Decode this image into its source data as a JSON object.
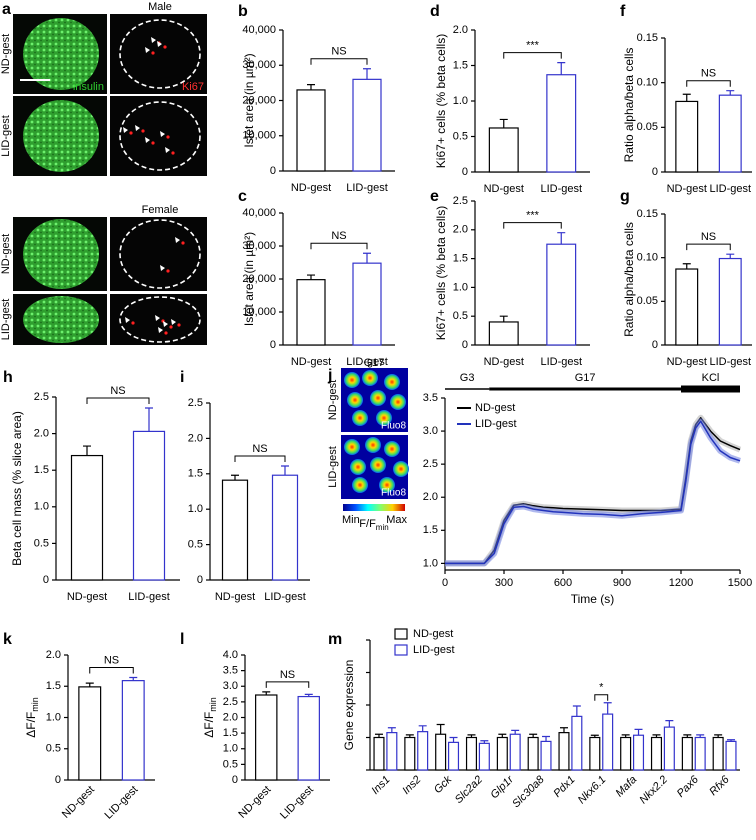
{
  "panel_a": {
    "panel": "a",
    "male": "Male",
    "female": "Female",
    "rows": [
      "ND-gest",
      "LID-gest",
      "ND-gest",
      "LID-gest"
    ],
    "stain_insulin": "insulin",
    "stain_ki67": "Ki67"
  },
  "panel_j_images": {
    "stimulus": "G17",
    "rows": [
      "ND-gest",
      "LID-gest"
    ],
    "dye": [
      "Fluo8",
      "Fluo8"
    ],
    "scale_min": "Min",
    "scale_max": "Max",
    "scale_label": "F/F",
    "scale_label_sub": "min"
  },
  "chart_data": [
    {
      "type": "bar",
      "panel": "b",
      "ylabel": "Islet area (in µm²)",
      "categories": [
        "ND-gest",
        "LID-gest"
      ],
      "values": [
        23000,
        26000
      ],
      "errors": [
        1500,
        3000
      ],
      "colors": [
        "#000000",
        "#3333cc"
      ],
      "ylim": [
        0,
        40000
      ],
      "yticks": [
        0,
        {
          "value": 10000,
          "label": "10,000"
        },
        {
          "value": 20000,
          "label": "20,000"
        },
        {
          "value": 30000,
          "label": "30,000"
        },
        {
          "value": 40000,
          "label": "40,000"
        }
      ],
      "annotation": "NS"
    },
    {
      "type": "bar",
      "panel": "c",
      "ylabel": "Islet area (in µm²)",
      "categories": [
        "ND-gest",
        "LID-gest"
      ],
      "values": [
        19800,
        24800
      ],
      "errors": [
        1400,
        3000
      ],
      "colors": [
        "#000000",
        "#3333cc"
      ],
      "ylim": [
        0,
        40000
      ],
      "yticks": [
        0,
        {
          "value": 10000,
          "label": "10,000"
        },
        {
          "value": 20000,
          "label": "20,000"
        },
        {
          "value": 30000,
          "label": "30,000"
        },
        {
          "value": 40000,
          "label": "40,000"
        }
      ],
      "annotation": "NS"
    },
    {
      "type": "bar",
      "panel": "d",
      "ylabel": "Ki67+ cells (% beta cells)",
      "categories": [
        "ND-gest",
        "LID-gest"
      ],
      "values": [
        0.62,
        1.37
      ],
      "errors": [
        0.12,
        0.17
      ],
      "colors": [
        "#000000",
        "#3333cc"
      ],
      "ylim": [
        0,
        2
      ],
      "yticks": [
        0,
        0.5,
        {
          "value": 1,
          "label": "1.0"
        },
        1.5,
        {
          "value": 2,
          "label": "2.0"
        }
      ],
      "annotation": "***"
    },
    {
      "type": "bar",
      "panel": "e",
      "ylabel": "Ki67+ cells (% beta cells)",
      "categories": [
        "ND-gest",
        "LID-gest"
      ],
      "values": [
        0.4,
        1.75
      ],
      "errors": [
        0.1,
        0.2
      ],
      "colors": [
        "#000000",
        "#3333cc"
      ],
      "ylim": [
        0,
        2.5
      ],
      "yticks": [
        0,
        0.5,
        {
          "value": 1,
          "label": "1.0"
        },
        1.5,
        {
          "value": 2,
          "label": "2.0"
        },
        2.5
      ],
      "annotation": "***"
    },
    {
      "type": "bar",
      "panel": "f",
      "ylabel": "Ratio alpha/beta cells",
      "categories": [
        "ND-gest",
        "LID-gest"
      ],
      "values": [
        0.079,
        0.086
      ],
      "errors": [
        0.008,
        0.005
      ],
      "colors": [
        "#000000",
        "#3333cc"
      ],
      "ylim": [
        0,
        0.15
      ],
      "yticks": [
        0,
        0.05,
        {
          "value": 0.1,
          "label": "0.10"
        },
        0.15
      ],
      "annotation": "NS"
    },
    {
      "type": "bar",
      "panel": "g",
      "ylabel": "Ratio alpha/beta cells",
      "categories": [
        "ND-gest",
        "LID-gest"
      ],
      "values": [
        0.087,
        0.099
      ],
      "errors": [
        0.006,
        0.005
      ],
      "colors": [
        "#000000",
        "#3333cc"
      ],
      "ylim": [
        0,
        0.15
      ],
      "yticks": [
        0,
        0.05,
        {
          "value": 0.1,
          "label": "0.10"
        },
        0.15
      ],
      "annotation": "NS"
    },
    {
      "type": "bar",
      "panel": "h",
      "ylabel": "Beta cell mass (% slice area)",
      "categories": [
        "ND-gest",
        "LID-gest"
      ],
      "values": [
        1.7,
        2.03
      ],
      "errors": [
        0.13,
        0.32
      ],
      "colors": [
        "#000000",
        "#3333cc"
      ],
      "ylim": [
        0,
        2.5
      ],
      "yticks": [
        0,
        0.5,
        {
          "value": 1,
          "label": "1.0"
        },
        1.5,
        {
          "value": 2,
          "label": "2.0"
        },
        2.5
      ],
      "annotation": "NS"
    },
    {
      "type": "bar",
      "panel": "i",
      "categories": [
        "ND-gest",
        "LID-gest"
      ],
      "values": [
        1.41,
        1.48
      ],
      "errors": [
        0.07,
        0.13
      ],
      "colors": [
        "#000000",
        "#3333cc"
      ],
      "ylim": [
        0,
        2.5
      ],
      "yticks": [
        0,
        0.5,
        {
          "value": 1,
          "label": "1.0"
        },
        1.5,
        {
          "value": 2,
          "label": "2.0"
        },
        2.5
      ],
      "annotation": "NS"
    },
    {
      "type": "line",
      "panel": "j",
      "xlabel": "Time (s)",
      "x": [
        0,
        50,
        100,
        150,
        200,
        250,
        300,
        350,
        400,
        450,
        500,
        550,
        600,
        700,
        800,
        900,
        1000,
        1100,
        1200,
        1225,
        1250,
        1275,
        1300,
        1350,
        1400,
        1450,
        1500
      ],
      "series": [
        {
          "name": "ND-gest",
          "color": "#000000",
          "values": [
            1.0,
            1.0,
            1.0,
            1.0,
            1.0,
            1.2,
            1.65,
            1.88,
            1.9,
            1.87,
            1.85,
            1.84,
            1.83,
            1.82,
            1.81,
            1.8,
            1.8,
            1.8,
            1.82,
            2.3,
            2.85,
            3.1,
            3.2,
            3.0,
            2.85,
            2.78,
            2.72
          ]
        },
        {
          "name": "LID-gest",
          "color": "#2233bb",
          "values": [
            1.0,
            1.0,
            1.0,
            1.0,
            1.0,
            1.15,
            1.6,
            1.85,
            1.86,
            1.82,
            1.8,
            1.78,
            1.77,
            1.75,
            1.74,
            1.72,
            1.75,
            1.77,
            1.8,
            2.25,
            2.8,
            3.05,
            3.15,
            2.9,
            2.7,
            2.6,
            2.55
          ]
        }
      ],
      "xlim": [
        0,
        1500
      ],
      "xticks": [
        0,
        300,
        600,
        900,
        1200,
        1500
      ],
      "ylim": [
        0.9,
        3.5
      ],
      "yticks": [
        {
          "value": 1,
          "label": "1.0"
        },
        1.5,
        {
          "value": 2,
          "label": "2.0"
        },
        2.5,
        {
          "value": 3,
          "label": "3.0"
        },
        3.5
      ],
      "legend": "top-left",
      "phases": [
        {
          "label": "G3",
          "start": 0,
          "end": 225
        },
        {
          "label": "G17",
          "start": 225,
          "end": 1200
        },
        {
          "label": "KCl",
          "start": 1200,
          "end": 1500
        }
      ]
    },
    {
      "type": "bar",
      "panel": "k",
      "ylabel": "ΔF/F",
      "ylabel_sub": "min",
      "categories": [
        "ND-gest",
        "LID-gest"
      ],
      "values": [
        1.49,
        1.59
      ],
      "errors": [
        0.06,
        0.05
      ],
      "colors": [
        "#000000",
        "#3333cc"
      ],
      "ylim": [
        0,
        2
      ],
      "yticks": [
        0,
        0.5,
        {
          "value": 1,
          "label": "1.0"
        },
        1.5,
        {
          "value": 2,
          "label": "2.0"
        }
      ],
      "annotation": "NS",
      "rotate_labels": true
    },
    {
      "type": "bar",
      "panel": "l",
      "ylabel": "ΔF/F",
      "ylabel_sub": "min",
      "categories": [
        "ND-gest",
        "LID-gest"
      ],
      "values": [
        2.72,
        2.67
      ],
      "errors": [
        0.1,
        0.07
      ],
      "colors": [
        "#000000",
        "#3333cc"
      ],
      "ylim": [
        0,
        4
      ],
      "yticks": [
        0,
        0.5,
        {
          "value": 1,
          "label": "1.0"
        },
        1.5,
        {
          "value": 2,
          "label": "2.0"
        },
        2.5,
        {
          "value": 3,
          "label": "3.0"
        },
        3.5,
        {
          "value": 4,
          "label": "4.0"
        }
      ],
      "annotation": "NS",
      "rotate_labels": true
    },
    {
      "type": "bar",
      "panel": "m",
      "ylabel": "Gene expression",
      "categories": [
        "Ins1",
        "Ins2",
        "Gck",
        "Slc2a2",
        "Glp1r",
        "Slc30a8",
        "Pdx1",
        "Nkx6.1",
        "Mafa",
        "Nkx2.2",
        "Pax6",
        "Rfx6"
      ],
      "series": [
        {
          "name": "ND-gest",
          "color": "#000000",
          "values": [
            1.0,
            1.0,
            1.1,
            1.0,
            1.0,
            1.0,
            1.15,
            1.0,
            1.0,
            1.0,
            1.0,
            1.0
          ],
          "errors": [
            0.1,
            0.08,
            0.3,
            0.08,
            0.1,
            0.1,
            0.15,
            0.07,
            0.08,
            0.08,
            0.08,
            0.08
          ]
        },
        {
          "name": "LID-gest",
          "color": "#3333cc",
          "values": [
            1.15,
            1.18,
            0.85,
            0.82,
            1.1,
            0.88,
            1.65,
            1.72,
            1.07,
            1.32,
            1.0,
            0.88
          ],
          "errors": [
            0.15,
            0.18,
            0.15,
            0.08,
            0.12,
            0.15,
            0.32,
            0.35,
            0.18,
            0.2,
            0.08,
            0.05
          ]
        }
      ],
      "ylim": [
        0,
        4
      ],
      "yticks": [
        0,
        1,
        2,
        3,
        4
      ],
      "ytick_labels": false,
      "legend": "top-left",
      "annotation": "*",
      "annotation_category": "Nkx6.1",
      "rotate_labels": true,
      "italic_labels": true
    }
  ]
}
